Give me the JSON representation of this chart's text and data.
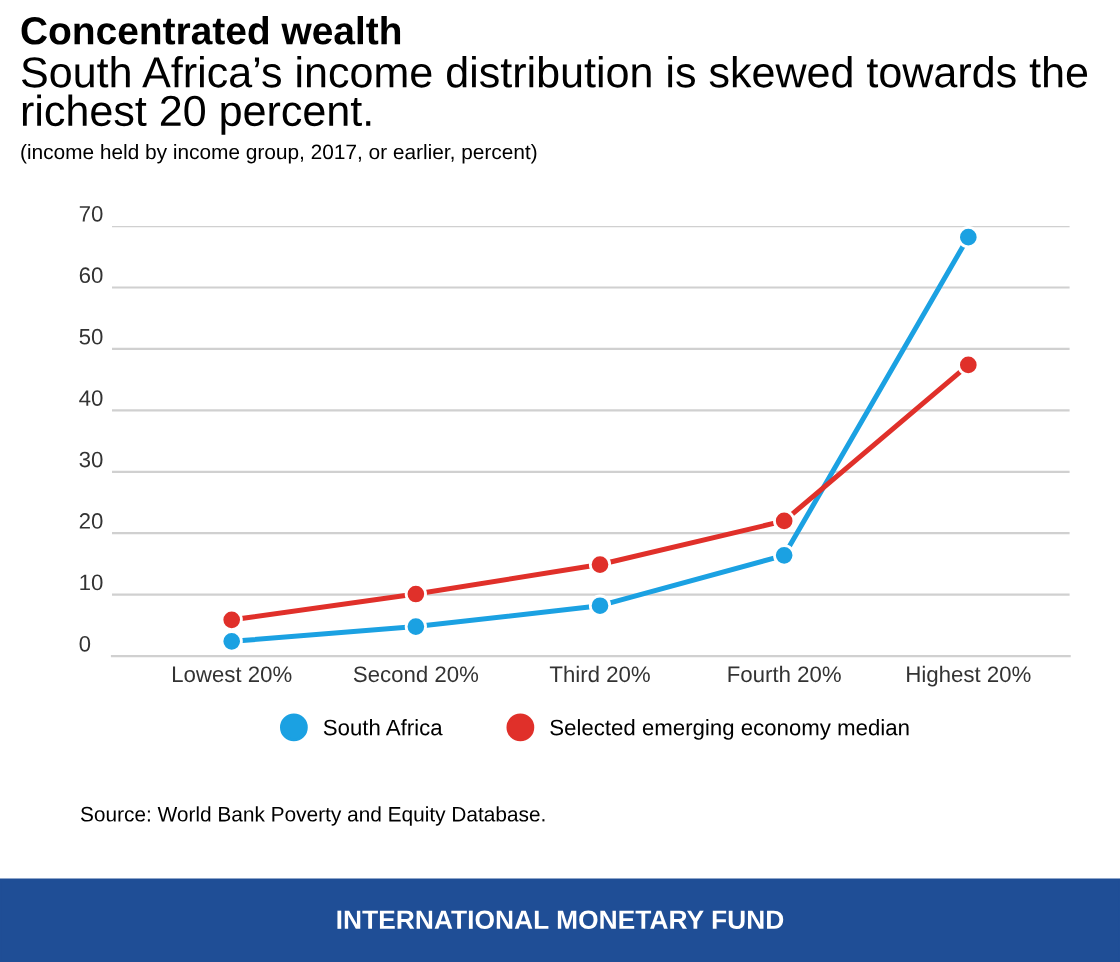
{
  "chart_data": {
    "type": "line",
    "title": "Concentrated wealth",
    "subtitle": "South Africa’s income distribution is skewed towards the richest 20 percent.",
    "ylabel": "(income held by income group, 2017, or earlier, percent)",
    "categories": [
      "Lowest 20%",
      "Second 20%",
      "Third 20%",
      "Fourth 20%",
      "Highest 20%"
    ],
    "series": [
      {
        "name": "South Africa",
        "color": "#1ba1e2",
        "values": [
          2.4,
          4.8,
          8.2,
          16.4,
          68.2
        ]
      },
      {
        "name": "Selected emerging economy median",
        "color": "#e0302a",
        "values": [
          5.9,
          10.1,
          14.9,
          22.0,
          47.4
        ]
      }
    ],
    "ylim": [
      0,
      70
    ],
    "yticks": [
      0,
      10,
      20,
      30,
      40,
      50,
      60,
      70
    ],
    "grid": "y",
    "legend": "bottom",
    "marker": "circle",
    "line_style": "solid",
    "annotations": [
      "Source: World Bank Poverty and Equity Database.",
      "INTERNATIONAL MONETARY FUND"
    ]
  }
}
